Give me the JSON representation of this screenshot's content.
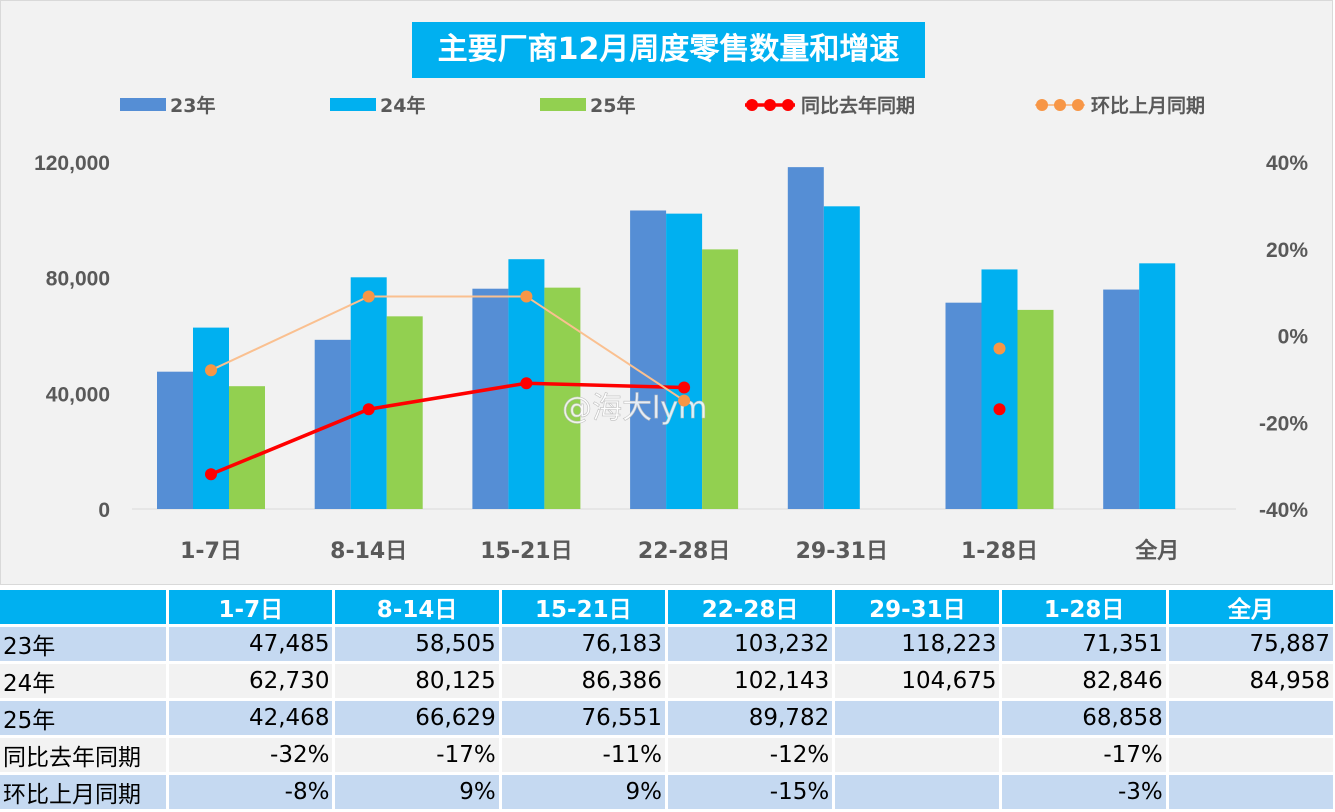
{
  "chart_data": {
    "type": "bar+line",
    "title": "主要厂商12月周度零售数量和增速",
    "categories": [
      "1-7日",
      "8-14日",
      "15-21日",
      "22-28日",
      "29-31日",
      "1-28日",
      "全月"
    ],
    "series": [
      {
        "name": "23年",
        "type": "bar",
        "axis": "left",
        "color": "#558ed5",
        "values": [
          47485,
          58505,
          76183,
          103232,
          118223,
          71351,
          75887
        ]
      },
      {
        "name": "24年",
        "type": "bar",
        "axis": "left",
        "color": "#00b0f0",
        "values": [
          62730,
          80125,
          86386,
          102143,
          104675,
          82846,
          84958
        ]
      },
      {
        "name": "25年",
        "type": "bar",
        "axis": "left",
        "color": "#92d050",
        "values": [
          42468,
          66629,
          76551,
          89782,
          null,
          68858,
          null
        ]
      },
      {
        "name": "同比去年同期",
        "type": "line",
        "axis": "right",
        "color": "#ff0000",
        "values": [
          -32,
          -17,
          -11,
          -12,
          null,
          -17,
          null
        ],
        "connected_points": 4
      },
      {
        "name": "环比上月同期",
        "type": "line",
        "axis": "right",
        "color": "#fac090",
        "marker_color": "#f79646",
        "values": [
          -8,
          9,
          9,
          -15,
          null,
          -3,
          null
        ],
        "connected_points": 4
      }
    ],
    "left_axis": {
      "ylim": [
        0,
        120000
      ],
      "ticks": [
        "0",
        "40,000",
        "80,000",
        "120,000"
      ]
    },
    "right_axis": {
      "ylim": [
        -40,
        40
      ],
      "ticks": [
        "-40%",
        "-20%",
        "0%",
        "20%",
        "40%"
      ]
    },
    "legend": "top",
    "grid": false
  },
  "watermark": "@海大lym",
  "table": {
    "header": [
      "",
      "1-7日",
      "8-14日",
      "15-21日",
      "22-28日",
      "29-31日",
      "1-28日",
      "全月"
    ],
    "rows": [
      [
        "23年",
        "47,485",
        "58,505",
        "76,183",
        "103,232",
        "118,223",
        "71,351",
        "75,887"
      ],
      [
        "24年",
        "62,730",
        "80,125",
        "86,386",
        "102,143",
        "104,675",
        "82,846",
        "84,958"
      ],
      [
        "25年",
        "42,468",
        "66,629",
        "76,551",
        "89,782",
        "",
        "68,858",
        ""
      ],
      [
        "同比去年同期",
        "-32%",
        "-17%",
        "-11%",
        "-12%",
        "",
        "-17%",
        ""
      ],
      [
        "环比上月同期",
        "-8%",
        "9%",
        "9%",
        "-15%",
        "",
        "-3%",
        ""
      ]
    ]
  }
}
